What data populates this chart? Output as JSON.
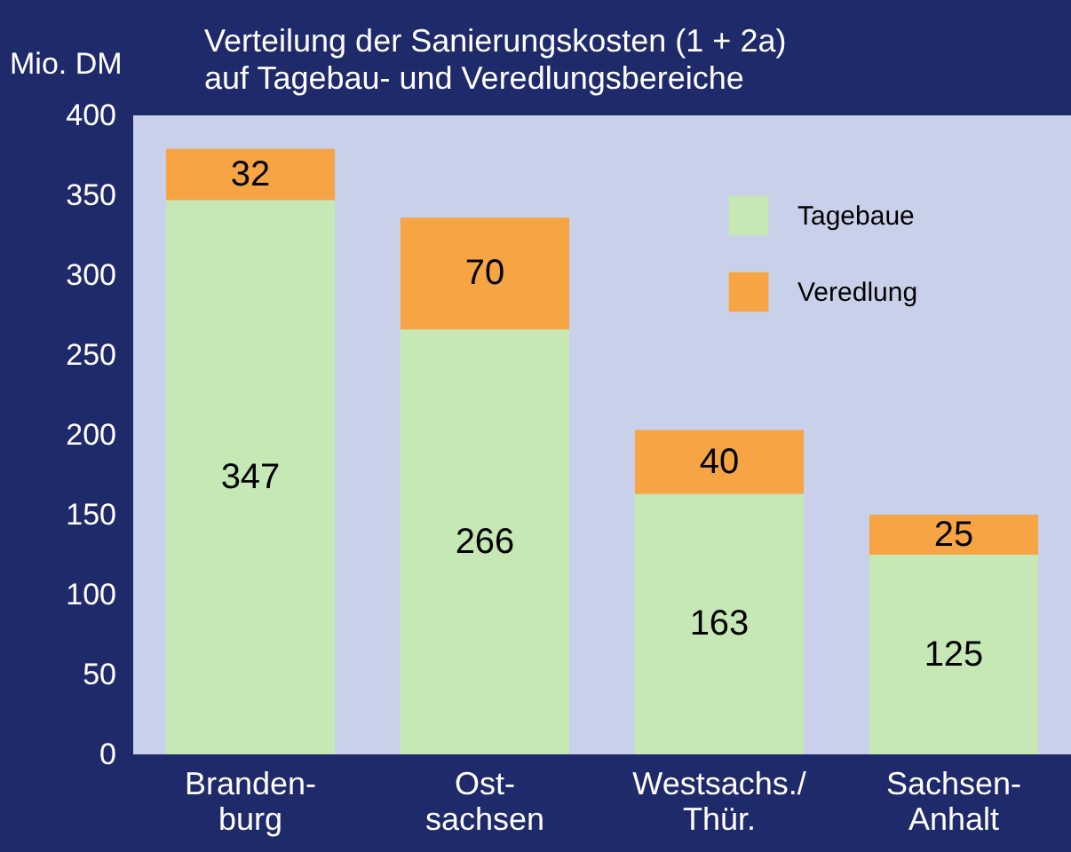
{
  "chart_data": {
    "type": "bar",
    "title": [
      "Verteilung der Sanierungskosten (1 + 2a)",
      "auf Tagebau- und Veredlungsbereiche"
    ],
    "ylabel": "Mio. DM",
    "categories": [
      "Branden-\nburg",
      "Ost-\nsachsen",
      "Westsachs./\nThür.",
      "Sachsen-\nAnhalt"
    ],
    "series": [
      {
        "name": "Tagebaue",
        "color": "#c5e8b4",
        "values": [
          347,
          266,
          163,
          125
        ]
      },
      {
        "name": "Veredlung",
        "color": "#f7a444",
        "values": [
          32,
          70,
          40,
          25
        ]
      }
    ],
    "stacked": true,
    "data_labels": true,
    "ylim": [
      0,
      400
    ],
    "yticks": [
      0,
      50,
      100,
      150,
      200,
      250,
      300,
      350,
      400
    ],
    "legend": "top right",
    "grid": false
  }
}
